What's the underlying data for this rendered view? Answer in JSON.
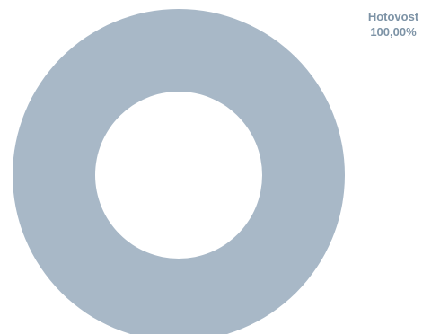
{
  "chart_data": {
    "type": "pie",
    "style": "donut",
    "series": [
      {
        "name": "Hotovost",
        "value": 100,
        "value_label": "100,00%",
        "color": "#a8b8c7"
      }
    ],
    "label_color": "#7d93a6"
  }
}
